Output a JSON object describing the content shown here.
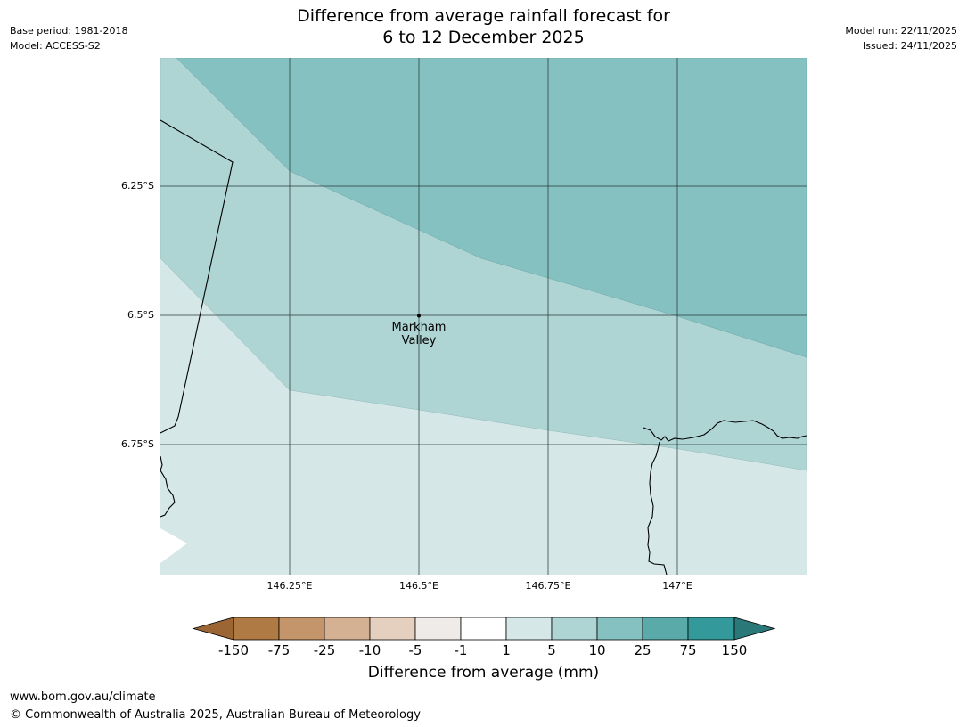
{
  "header": {
    "title_line1": "Difference from average rainfall forecast for",
    "title_line2": "6 to 12 December 2025",
    "base_period": "Base period: 1981-2018",
    "model": "Model: ACCESS-S2",
    "model_run": "Model run: 22/11/2025",
    "issued": "Issued: 24/11/2025"
  },
  "map": {
    "region": "Markham Valley",
    "place_label_line1": "Markham",
    "place_label_line2": "Valley",
    "lat_ticks": [
      "6.25°S",
      "6.5°S",
      "6.75°S"
    ],
    "lon_ticks": [
      "146.25°E",
      "146.5°E",
      "146.75°E",
      "147°E"
    ],
    "lat_range_deg": [
      -6.0,
      -7.0
    ],
    "lon_range_deg": [
      146.0,
      147.25
    ]
  },
  "colorbar": {
    "labels": [
      "-150",
      "-75",
      "-25",
      "-10",
      "-5",
      "-1",
      "1",
      "5",
      "10",
      "25",
      "75",
      "150"
    ],
    "colors": [
      "#9c6634",
      "#b07a44",
      "#c4956a",
      "#d4b192",
      "#e5d0c0",
      "#efebe8",
      "#ffffff",
      "#d5e8e7",
      "#afd4d4",
      "#85c1c0",
      "#5aaaa9",
      "#34999a",
      "#2a7878"
    ],
    "title": "Difference from average (mm)"
  },
  "footer": {
    "url": "www.bom.gov.au/climate",
    "copyright": "© Commonwealth of Australia 2025, Australian Bureau of Meteorology"
  }
}
